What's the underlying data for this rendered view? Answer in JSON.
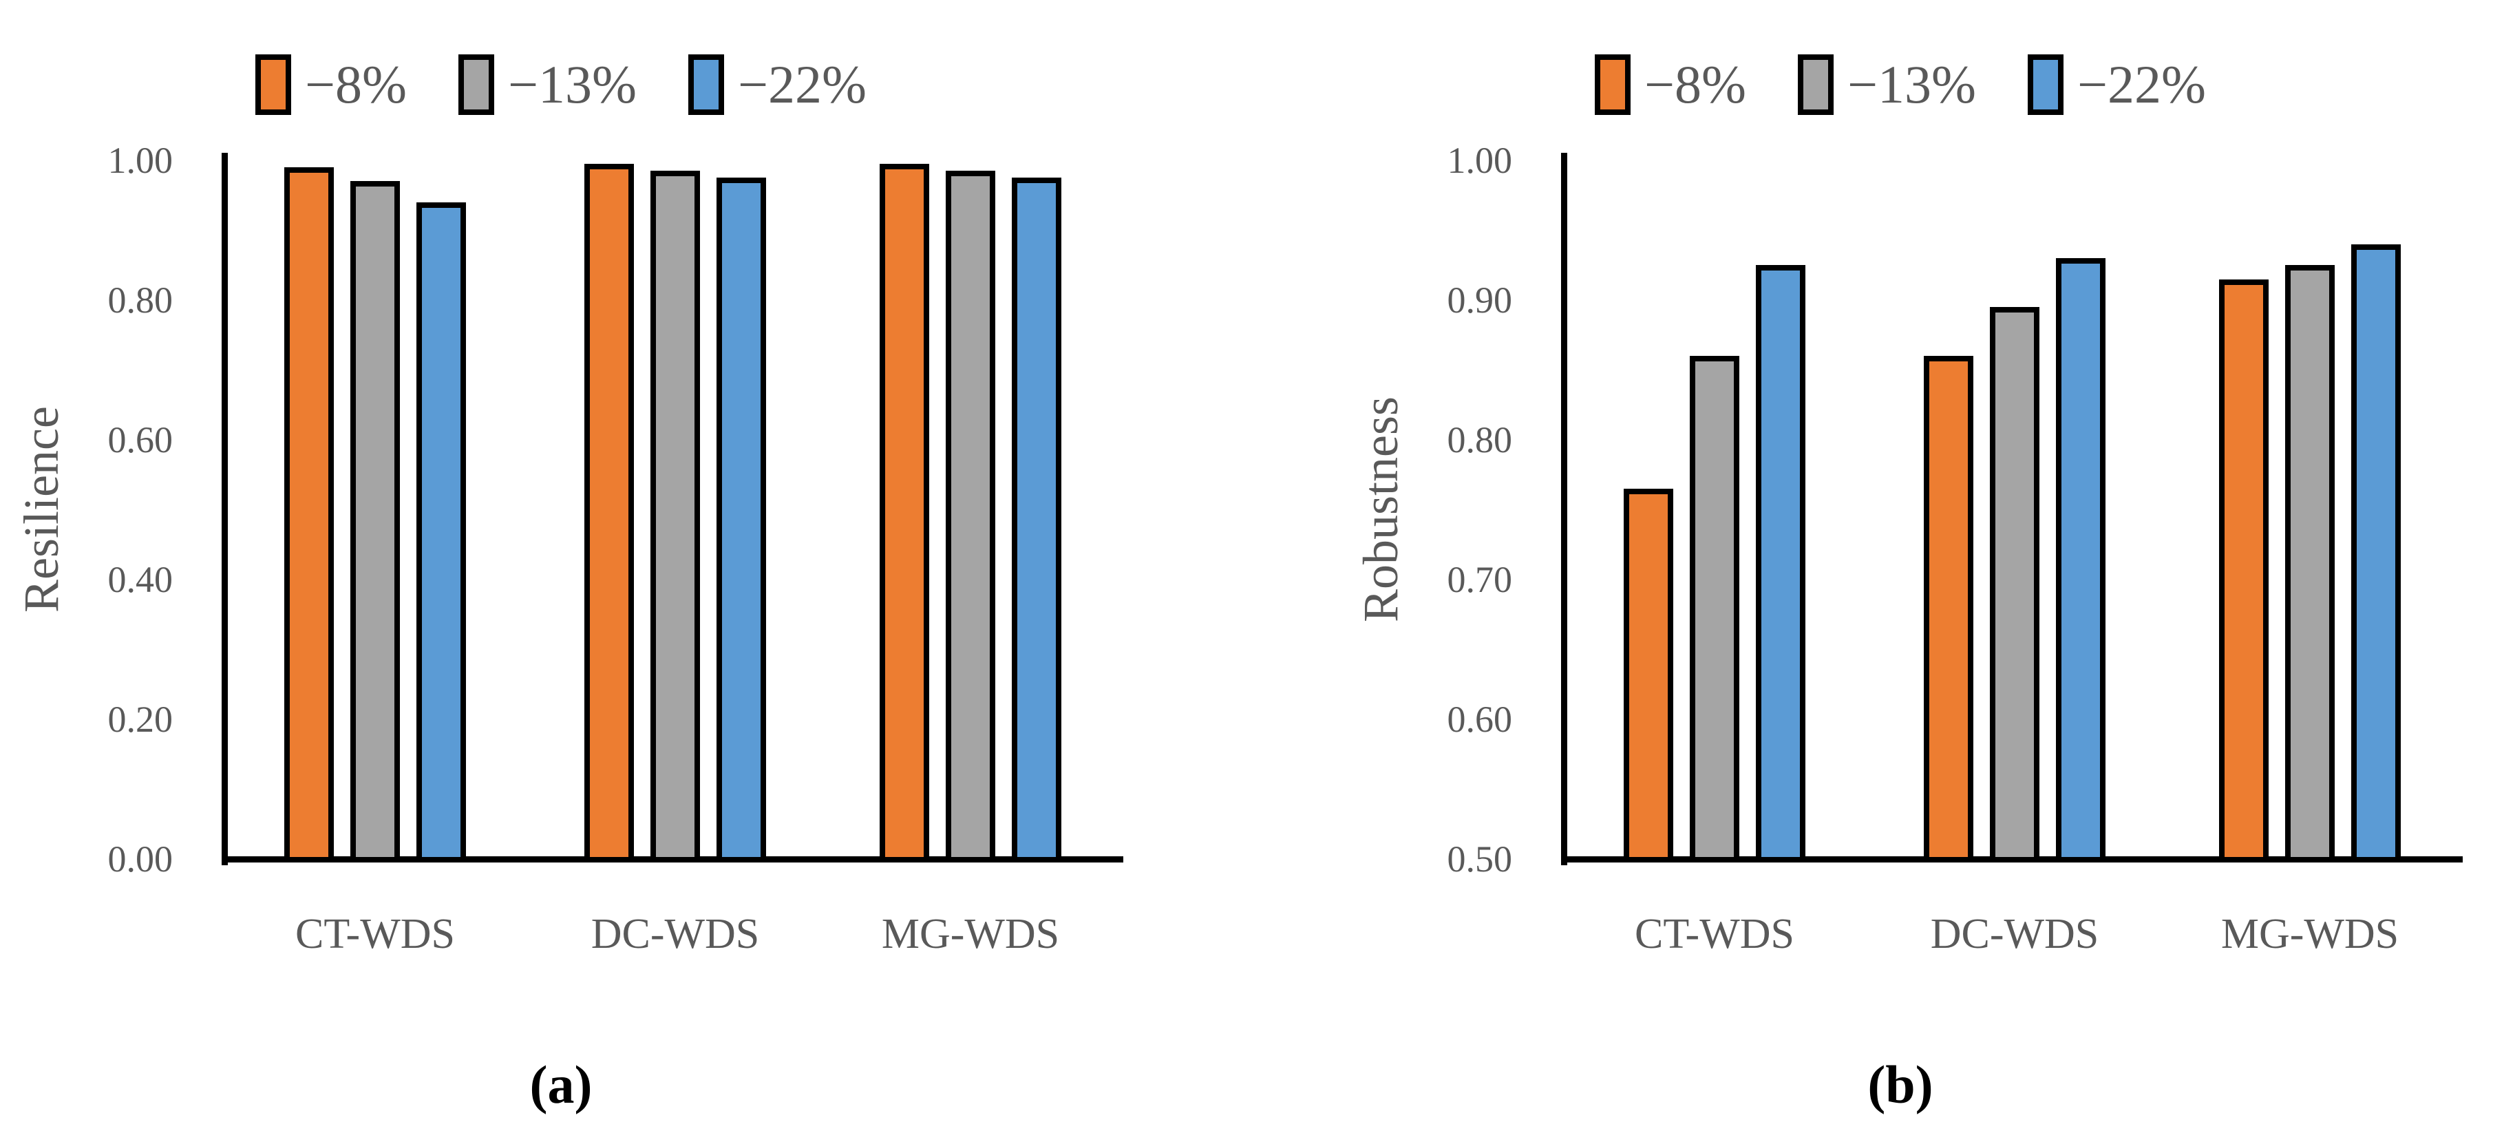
{
  "figure": {
    "background": "#FFFFFF",
    "text_color": "#595959",
    "axis_color": "#000000",
    "caption_color": "#000000"
  },
  "chart_data": [
    {
      "type": "bar",
      "panel": "a",
      "caption": "(a)",
      "title": "",
      "ylabel": "Resilience",
      "xlabel": "",
      "categories": [
        "CT-WDS",
        "DC-WDS",
        "MG-WDS"
      ],
      "series": [
        {
          "name": "−8%",
          "color": "#ED7D31",
          "values": [
            0.99,
            0.995,
            0.995
          ]
        },
        {
          "name": "−13%",
          "color": "#A5A5A5",
          "values": [
            0.97,
            0.985,
            0.985
          ]
        },
        {
          "name": "−22%",
          "color": "#5B9BD5",
          "values": [
            0.94,
            0.975,
            0.975
          ]
        }
      ],
      "ylim": [
        0.0,
        1.0
      ],
      "ytick_values": [
        1.0,
        0.8,
        0.6,
        0.4,
        0.2,
        0.0
      ],
      "ytick_labels": [
        "1.00",
        "0.80",
        "0.60",
        "0.40",
        "0.20",
        "0.00"
      ],
      "legend_position": "top",
      "grid": false
    },
    {
      "type": "bar",
      "panel": "b",
      "caption": "(b)",
      "title": "",
      "ylabel": "Robustness",
      "xlabel": "",
      "categories": [
        "CT-WDS",
        "DC-WDS",
        "MG-WDS"
      ],
      "series": [
        {
          "name": "−8%",
          "color": "#ED7D31",
          "values": [
            0.765,
            0.86,
            0.915
          ]
        },
        {
          "name": "−13%",
          "color": "#A5A5A5",
          "values": [
            0.86,
            0.895,
            0.925
          ]
        },
        {
          "name": "−22%",
          "color": "#5B9BD5",
          "values": [
            0.925,
            0.93,
            0.94
          ]
        }
      ],
      "ylim": [
        0.5,
        1.0
      ],
      "ytick_values": [
        1.0,
        0.9,
        0.8,
        0.7,
        0.6,
        0.5
      ],
      "ytick_labels": [
        "1.00",
        "0.90",
        "0.80",
        "0.70",
        "0.60",
        "0.50"
      ],
      "legend_position": "top",
      "grid": false
    }
  ]
}
